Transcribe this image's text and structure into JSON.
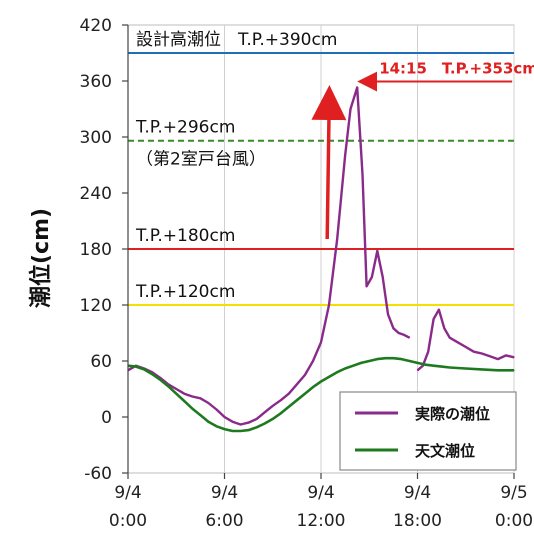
{
  "chart_data": {
    "type": "line",
    "ylabel": "潮位(cm)",
    "ylim": [
      -60,
      420
    ],
    "yticks": [
      -60,
      0,
      60,
      120,
      180,
      240,
      300,
      360,
      420
    ],
    "xlim": [
      "2004-09-04T00:00",
      "2004-09-05T00:00"
    ],
    "xticks": [
      {
        "at": "2004-09-04T00:00",
        "date": "9/4",
        "time": "0:00"
      },
      {
        "at": "2004-09-04T06:00",
        "date": "9/4",
        "time": "6:00"
      },
      {
        "at": "2004-09-04T12:00",
        "date": "9/4",
        "time": "12:00"
      },
      {
        "at": "2004-09-04T18:00",
        "date": "9/4",
        "time": "18:00"
      },
      {
        "at": "2004-09-05T00:00",
        "date": "9/5",
        "time": "0:00"
      }
    ],
    "grid": "vertical",
    "reference_lines": [
      {
        "label": "設計高潮位　T.P.+390cm",
        "value": 390,
        "color": "#1f6fb8",
        "style": "solid"
      },
      {
        "label": "T.P.+296cm",
        "label2": "（第2室戸台風）",
        "value": 296,
        "color": "#3a8a2a",
        "style": "dashed"
      },
      {
        "label": "T.P.+180cm",
        "value": 180,
        "color": "#e02020",
        "style": "solid"
      },
      {
        "label": "T.P.+120cm",
        "value": 120,
        "color": "#f4e000",
        "style": "solid"
      }
    ],
    "peak_annotation": {
      "text": "14:15　T.P.+353cm",
      "x": "2004-09-04T14:15",
      "value": 353,
      "color": "#e02020"
    },
    "series": [
      {
        "name": "実際の潮位",
        "color": "#8a2a8a",
        "x": [
          "2004-09-04T00:00",
          "2004-09-04T00:30",
          "2004-09-04T01:00",
          "2004-09-04T01:30",
          "2004-09-04T02:00",
          "2004-09-04T02:30",
          "2004-09-04T03:00",
          "2004-09-04T03:30",
          "2004-09-04T04:00",
          "2004-09-04T04:30",
          "2004-09-04T05:00",
          "2004-09-04T05:30",
          "2004-09-04T06:00",
          "2004-09-04T06:30",
          "2004-09-04T07:00",
          "2004-09-04T07:30",
          "2004-09-04T08:00",
          "2004-09-04T08:30",
          "2004-09-04T09:00",
          "2004-09-04T09:30",
          "2004-09-04T10:00",
          "2004-09-04T10:30",
          "2004-09-04T11:00",
          "2004-09-04T11:30",
          "2004-09-04T12:00",
          "2004-09-04T12:30",
          "2004-09-04T13:00",
          "2004-09-04T13:30",
          "2004-09-04T13:50",
          "2004-09-04T14:15",
          "2004-09-04T14:35",
          "2004-09-04T14:50",
          "2004-09-04T15:10",
          "2004-09-04T15:30",
          "2004-09-04T15:50",
          "2004-09-04T16:10",
          "2004-09-04T16:30",
          "2004-09-04T16:50",
          "2004-09-04T17:10",
          "2004-09-04T17:30",
          null,
          "2004-09-04T18:00",
          "2004-09-04T18:20",
          "2004-09-04T18:40",
          "2004-09-04T19:00",
          "2004-09-04T19:20",
          "2004-09-04T19:40",
          "2004-09-04T20:00",
          "2004-09-04T20:30",
          "2004-09-04T21:00",
          "2004-09-04T21:30",
          "2004-09-04T22:00",
          "2004-09-04T22:30",
          "2004-09-04T23:00",
          "2004-09-04T23:30",
          "2004-09-05T00:00"
        ],
        "values": [
          50,
          55,
          52,
          48,
          42,
          35,
          30,
          25,
          22,
          20,
          15,
          8,
          0,
          -5,
          -8,
          -6,
          -2,
          5,
          12,
          18,
          25,
          35,
          45,
          60,
          80,
          120,
          190,
          280,
          330,
          353,
          260,
          140,
          150,
          178,
          150,
          110,
          95,
          90,
          88,
          85,
          null,
          50,
          55,
          70,
          105,
          115,
          95,
          85,
          80,
          75,
          70,
          68,
          65,
          62,
          66,
          64
        ]
      },
      {
        "name": "天文潮位",
        "color": "#1e7a1e",
        "x": [
          "2004-09-04T00:00",
          "2004-09-04T00:30",
          "2004-09-04T01:00",
          "2004-09-04T01:30",
          "2004-09-04T02:00",
          "2004-09-04T02:30",
          "2004-09-04T03:00",
          "2004-09-04T03:30",
          "2004-09-04T04:00",
          "2004-09-04T04:30",
          "2004-09-04T05:00",
          "2004-09-04T05:30",
          "2004-09-04T06:00",
          "2004-09-04T06:30",
          "2004-09-04T07:00",
          "2004-09-04T07:30",
          "2004-09-04T08:00",
          "2004-09-04T08:30",
          "2004-09-04T09:00",
          "2004-09-04T09:30",
          "2004-09-04T10:00",
          "2004-09-04T10:30",
          "2004-09-04T11:00",
          "2004-09-04T11:30",
          "2004-09-04T12:00",
          "2004-09-04T12:30",
          "2004-09-04T13:00",
          "2004-09-04T13:30",
          "2004-09-04T14:00",
          "2004-09-04T14:30",
          "2004-09-04T15:00",
          "2004-09-04T15:30",
          "2004-09-04T16:00",
          "2004-09-04T16:30",
          "2004-09-04T17:00",
          "2004-09-04T17:30",
          "2004-09-04T18:00",
          "2004-09-04T18:30",
          "2004-09-04T19:00",
          "2004-09-04T19:30",
          "2004-09-04T20:00",
          "2004-09-04T21:00",
          "2004-09-04T22:00",
          "2004-09-04T23:00",
          "2004-09-05T00:00"
        ],
        "values": [
          55,
          54,
          51,
          46,
          40,
          33,
          25,
          17,
          9,
          2,
          -5,
          -10,
          -13,
          -15,
          -15,
          -14,
          -11,
          -7,
          -2,
          4,
          11,
          18,
          25,
          32,
          38,
          43,
          48,
          52,
          55,
          58,
          60,
          62,
          63,
          63,
          62,
          60,
          58,
          56,
          55,
          54,
          53,
          52,
          51,
          50,
          50
        ]
      }
    ],
    "legend": {
      "placement": "bottom-right",
      "entries": [
        "実際の潮位",
        "天文潮位"
      ]
    }
  }
}
